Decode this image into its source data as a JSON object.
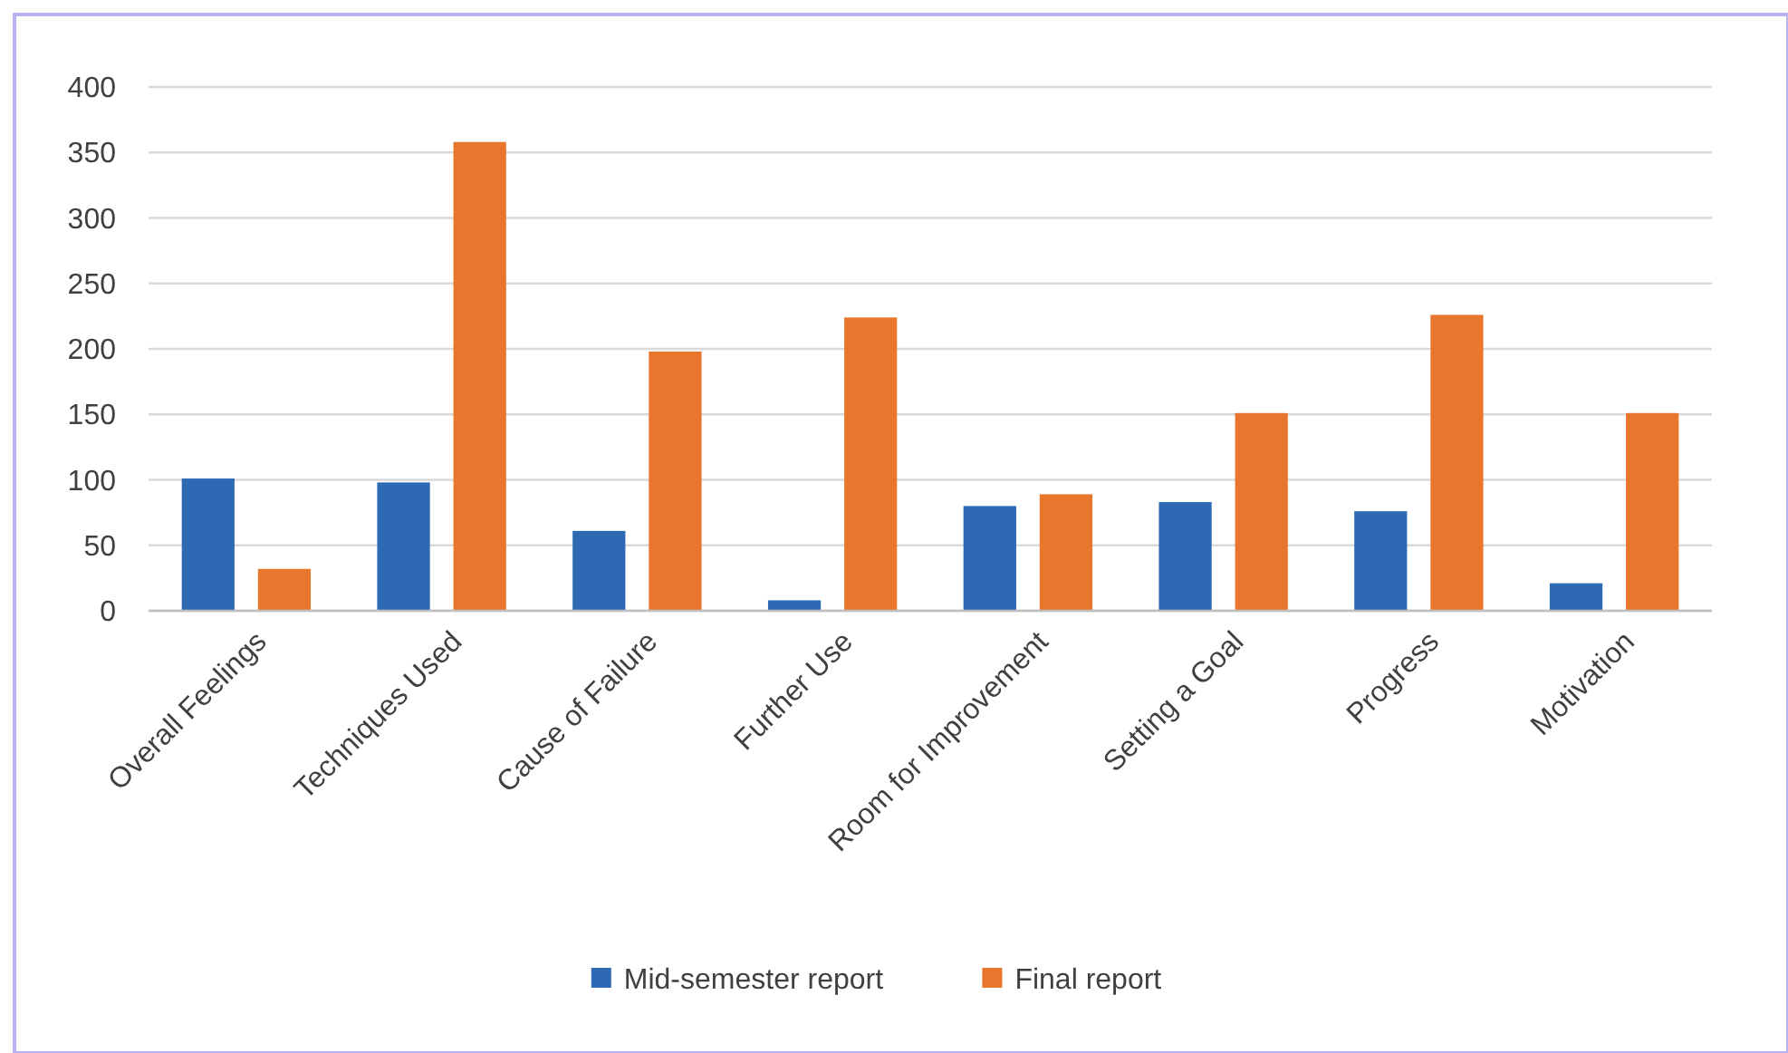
{
  "chart_data": {
    "type": "bar",
    "categories": [
      "Overall Feelings",
      "Techniques Used",
      "Cause of Failure",
      "Further Use",
      "Room for Improvement",
      "Setting a Goal",
      "Progress",
      "Motivation"
    ],
    "series": [
      {
        "name": "Mid-semester report",
        "color": "#2e6ab4",
        "values": [
          101,
          98,
          61,
          8,
          80,
          83,
          76,
          21
        ]
      },
      {
        "name": "Final report",
        "color": "#e8762d",
        "values": [
          32,
          358,
          198,
          224,
          89,
          151,
          226,
          151
        ]
      }
    ],
    "ylim": [
      0,
      400
    ],
    "yticks": [
      0,
      50,
      100,
      150,
      200,
      250,
      300,
      350,
      400
    ],
    "grid": "y",
    "legend": "bottom"
  }
}
